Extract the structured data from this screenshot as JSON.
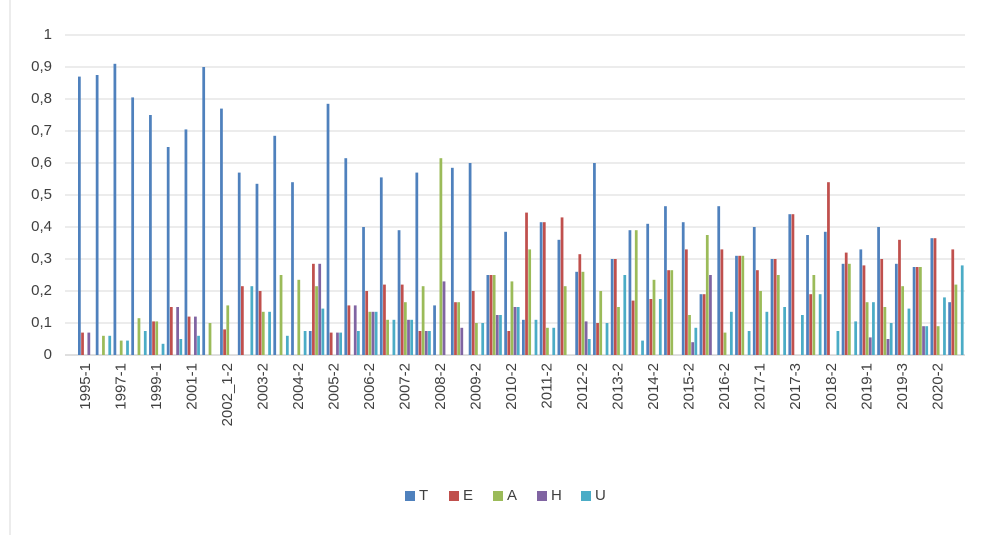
{
  "chart_data": {
    "type": "bar",
    "categories": [
      "1995-1",
      null,
      "1997-1",
      null,
      "1999-1",
      null,
      "2001-1",
      null,
      "2002_1-2",
      null,
      "2003-2",
      null,
      "2004-2",
      null,
      "2005-2",
      null,
      "2006-2",
      null,
      "2007-2",
      null,
      "2008-2",
      null,
      "2009-2",
      null,
      "2010-2",
      null,
      "2011-2",
      null,
      "2012-2",
      null,
      "2013-2",
      null,
      "2014-2",
      null,
      "2015-2",
      null,
      "2016-2",
      null,
      "2017-1",
      null,
      "2017-3",
      null,
      "2018-2",
      null,
      "2019-1",
      null,
      "2019-3",
      null,
      "2020-2",
      null
    ],
    "series": [
      {
        "name": "T",
        "color": "#4f81bd",
        "values": [
          0.87,
          0.875,
          0.91,
          0.805,
          0.75,
          0.65,
          0.705,
          0.9,
          0.77,
          0.57,
          0.535,
          0.685,
          0.54,
          0.075,
          0.785,
          0.615,
          0.4,
          0.555,
          0.39,
          0.57,
          0.155,
          0.585,
          0.6,
          0.25,
          0.385,
          0.11,
          0.415,
          0.36,
          0.26,
          0.6,
          0.3,
          0.39,
          0.41,
          0.465,
          0.415,
          0.19,
          0.465,
          0.31,
          0.4,
          0.3,
          0.44,
          0.375,
          0.385,
          0.285,
          0.33,
          0.4,
          0.285,
          0.275,
          0.365,
          0.165
        ]
      },
      {
        "name": "E",
        "color": "#c0504d",
        "values": [
          0.07,
          0,
          0,
          0,
          0.105,
          0.15,
          0.12,
          0,
          0.08,
          0.215,
          0.2,
          0,
          0,
          0.285,
          0.07,
          0.155,
          0.2,
          0.22,
          0.22,
          0.075,
          0,
          0.165,
          0.2,
          0.25,
          0.075,
          0.445,
          0.415,
          0.43,
          0.315,
          0.1,
          0.3,
          0.17,
          0.175,
          0.265,
          0.33,
          0.19,
          0.33,
          0.31,
          0.265,
          0.3,
          0.44,
          0.19,
          0.54,
          0.32,
          0.28,
          0.3,
          0.36,
          0.275,
          0.365,
          0.33
        ]
      },
      {
        "name": "A",
        "color": "#9bbb59",
        "values": [
          0,
          0.06,
          0.045,
          0.115,
          0.105,
          0,
          0,
          0.1,
          0.155,
          0,
          0.135,
          0.25,
          0.235,
          0.215,
          0,
          0,
          0.135,
          0.11,
          0.165,
          0.215,
          0.615,
          0.165,
          0.1,
          0.25,
          0.23,
          0.33,
          0.085,
          0.215,
          0.26,
          0.2,
          0.15,
          0.39,
          0.235,
          0.265,
          0.125,
          0.375,
          0.07,
          0.31,
          0.2,
          0.25,
          0,
          0.25,
          0,
          0.285,
          0.165,
          0.15,
          0.215,
          0.275,
          0.09,
          0.22
        ]
      },
      {
        "name": "H",
        "color": "#8064a2",
        "values": [
          0.07,
          0,
          0,
          0,
          0,
          0.15,
          0.12,
          0,
          0,
          0,
          0,
          0,
          0,
          0.285,
          0.07,
          0.155,
          0.135,
          0,
          0.11,
          0.075,
          0.23,
          0.085,
          0,
          0.125,
          0.15,
          0,
          0,
          0,
          0.105,
          0,
          0,
          0,
          0,
          0,
          0.04,
          0.25,
          0,
          0,
          0,
          0,
          0,
          0,
          0,
          0,
          0.055,
          0.05,
          0,
          0.09,
          0,
          0
        ]
      },
      {
        "name": "U",
        "color": "#4bacc6",
        "values": [
          0,
          0.06,
          0.045,
          0.075,
          0.035,
          0.05,
          0.06,
          0,
          0,
          0.215,
          0.135,
          0.06,
          0.075,
          0.145,
          0.07,
          0.075,
          0.135,
          0.11,
          0.11,
          0.075,
          0,
          0,
          0.1,
          0.125,
          0.15,
          0.11,
          0.085,
          0,
          0.05,
          0.1,
          0.25,
          0.045,
          0.175,
          0,
          0.085,
          0,
          0.135,
          0.075,
          0.135,
          0.15,
          0.125,
          0.19,
          0.075,
          0.105,
          0.165,
          0.1,
          0.145,
          0.09,
          0.18,
          0.28
        ]
      }
    ],
    "ylim": [
      0,
      1
    ],
    "yticks": [
      0,
      {
        "value": 0.1,
        "label": "0,1"
      },
      {
        "value": 0.2,
        "label": "0,2"
      },
      {
        "value": 0.3,
        "label": "0,3"
      },
      {
        "value": 0.4,
        "label": "0,4"
      },
      {
        "value": 0.5,
        "label": "0,5"
      },
      {
        "value": 0.6,
        "label": "0,6"
      },
      {
        "value": 0.7,
        "label": "0,7"
      },
      {
        "value": 0.8,
        "label": "0,8"
      },
      {
        "value": 0.9,
        "label": "0,9"
      },
      1
    ],
    "grid": true,
    "legend": "bottom"
  }
}
